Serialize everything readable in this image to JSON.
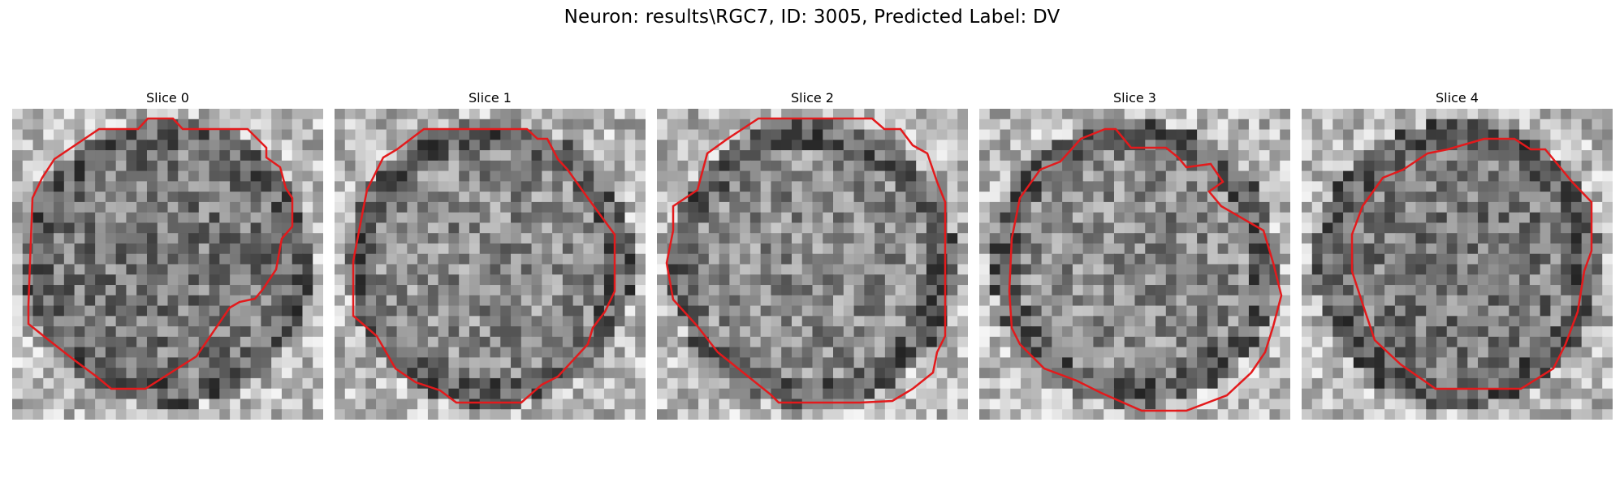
{
  "figure": {
    "suptitle": "Neuron: results\\RGC7, ID: 3005, Predicted Label: DV",
    "outline_color": "#e31a1c",
    "panels": [
      {
        "title": "Slice 0",
        "seed": 11,
        "dark_center": true
      },
      {
        "title": "Slice 1",
        "seed": 23,
        "dark_center": false
      },
      {
        "title": "Slice 2",
        "seed": 37,
        "dark_center": false
      },
      {
        "title": "Slice 3",
        "seed": 41,
        "dark_center": false
      },
      {
        "title": "Slice 4",
        "seed": 59,
        "dark_center": true
      }
    ]
  }
}
